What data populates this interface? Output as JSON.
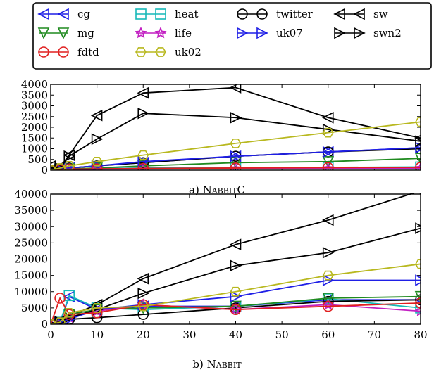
{
  "legend": {
    "entries": [
      {
        "name": "cg",
        "color": "#1f1fe6",
        "marker": "triangle-left"
      },
      {
        "name": "heat",
        "color": "#17b9b9",
        "marker": "square"
      },
      {
        "name": "twitter",
        "color": "#000000",
        "marker": "circle"
      },
      {
        "name": "sw",
        "color": "#000000",
        "marker": "triangle-left"
      },
      {
        "name": "mg",
        "color": "#1f8a1f",
        "marker": "triangle-down"
      },
      {
        "name": "life",
        "color": "#c21fc2",
        "marker": "star"
      },
      {
        "name": "uk07",
        "color": "#1f1fe6",
        "marker": "triangle-right"
      },
      {
        "name": "swn2",
        "color": "#000000",
        "marker": "triangle-right"
      },
      {
        "name": "fdtd",
        "color": "#e01f1f",
        "marker": "circle"
      },
      {
        "name": "uk02",
        "color": "#b8b81f",
        "marker": "hexagon"
      }
    ]
  },
  "chart_data": [
    {
      "type": "line",
      "title": "a) NabbitC",
      "caption_prefix": "a) ",
      "caption_name": "NabbitC",
      "x": [
        0,
        2,
        4,
        10,
        20,
        40,
        60,
        80
      ],
      "xlim": [
        0,
        80
      ],
      "ylim": [
        0,
        4000
      ],
      "yticks": [
        0,
        500,
        1000,
        1500,
        2000,
        2500,
        3000,
        3500,
        4000
      ],
      "show_xticks": false,
      "series": [
        {
          "name": "cg",
          "values": [
            0,
            50,
            100,
            200,
            350,
            650,
            850,
            1050
          ]
        },
        {
          "name": "heat",
          "values": [
            0,
            30,
            60,
            80,
            100,
            120,
            130,
            150
          ]
        },
        {
          "name": "twitter",
          "values": [
            0,
            40,
            100,
            200,
            350,
            650,
            850,
            1000
          ]
        },
        {
          "name": "sw",
          "values": [
            200,
            150,
            700,
            2550,
            3600,
            3850,
            2450,
            1500
          ]
        },
        {
          "name": "mg",
          "values": [
            0,
            30,
            60,
            100,
            200,
            350,
            400,
            550
          ]
        },
        {
          "name": "life",
          "values": [
            0,
            20,
            40,
            50,
            60,
            70,
            80,
            90
          ]
        },
        {
          "name": "uk07",
          "values": [
            0,
            40,
            100,
            200,
            400,
            650,
            850,
            1050
          ]
        },
        {
          "name": "swn2",
          "values": [
            100,
            100,
            650,
            1450,
            2650,
            2450,
            1900,
            1350
          ]
        },
        {
          "name": "fdtd",
          "values": [
            0,
            20,
            50,
            60,
            80,
            100,
            120,
            130
          ]
        },
        {
          "name": "uk02",
          "values": [
            0,
            100,
            200,
            400,
            700,
            1250,
            1750,
            2250
          ]
        }
      ]
    },
    {
      "type": "line",
      "title": "b) Nabbit",
      "caption_prefix": "b) ",
      "caption_name": "Nabbit",
      "x": [
        0,
        2,
        4,
        10,
        20,
        40,
        60,
        80
      ],
      "xlim": [
        0,
        80
      ],
      "ylim": [
        0,
        40000
      ],
      "yticks": [
        0,
        5000,
        10000,
        15000,
        20000,
        25000,
        30000,
        35000,
        40000
      ],
      "xticks": [
        0,
        10,
        20,
        30,
        40,
        50,
        60,
        70,
        80
      ],
      "show_xticks": true,
      "series": [
        {
          "name": "cg",
          "values": [
            0,
            500,
            8500,
            4500,
            5500,
            5500,
            7500,
            7500
          ]
        },
        {
          "name": "heat",
          "values": [
            0,
            600,
            8800,
            5000,
            4500,
            5500,
            7800,
            5000
          ]
        },
        {
          "name": "twitter",
          "values": [
            0,
            300,
            1500,
            2000,
            3000,
            5000,
            7000,
            7500
          ]
        },
        {
          "name": "sw",
          "values": [
            0,
            1000,
            2500,
            6000,
            14000,
            24500,
            32000,
            41000
          ]
        },
        {
          "name": "mg",
          "values": [
            0,
            400,
            3000,
            4500,
            5000,
            5500,
            8000,
            8500
          ]
        },
        {
          "name": "life",
          "values": [
            0,
            400,
            2000,
            4000,
            6000,
            4500,
            6000,
            4000
          ]
        },
        {
          "name": "uk07",
          "values": [
            0,
            500,
            1500,
            4500,
            6000,
            8500,
            13500,
            13500
          ]
        },
        {
          "name": "swn2",
          "values": [
            0,
            800,
            2000,
            4500,
            9500,
            18000,
            22000,
            29500
          ]
        },
        {
          "name": "fdtd",
          "values": [
            0,
            8000,
            3000,
            3500,
            6000,
            4500,
            5500,
            6500
          ]
        },
        {
          "name": "uk02",
          "values": [
            0,
            600,
            3500,
            5000,
            5500,
            10000,
            15000,
            18500
          ]
        }
      ]
    }
  ]
}
